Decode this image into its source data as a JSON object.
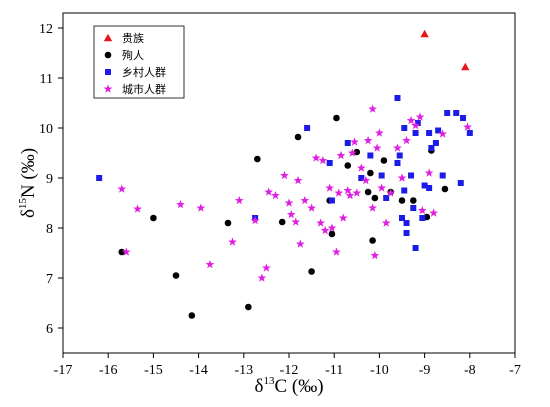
{
  "chart_data": {
    "type": "scatter",
    "xlabel": "δ13C (‰)",
    "ylabel": "δ15N (‰)",
    "xlabel_parts": {
      "delta": "δ",
      "sup": "13",
      "main": "C (‰)"
    },
    "ylabel_parts": {
      "delta": "δ",
      "sup": "15",
      "main": "N (‰)"
    },
    "xlim": [
      -17,
      -7
    ],
    "ylim": [
      5.5,
      12.3
    ],
    "xticks": [
      "-17",
      "-16",
      "-15",
      "-14",
      "-13",
      "-12",
      "-11",
      "-10",
      "-9",
      "-8",
      "-7"
    ],
    "yticks": [
      "6",
      "7",
      "8",
      "9",
      "10",
      "11",
      "12"
    ],
    "grid": false,
    "legend_position": "top-left",
    "series": [
      {
        "name": "贵族",
        "marker": "triangle",
        "color": "#e8141c",
        "points": [
          [
            -9.0,
            11.88
          ],
          [
            -8.1,
            11.22
          ]
        ]
      },
      {
        "name": "殉人",
        "marker": "circle",
        "color": "#000000",
        "points": [
          [
            -15.7,
            7.52
          ],
          [
            -15.0,
            8.2
          ],
          [
            -14.5,
            7.05
          ],
          [
            -14.15,
            6.25
          ],
          [
            -13.35,
            8.1
          ],
          [
            -12.9,
            6.42
          ],
          [
            -12.7,
            9.38
          ],
          [
            -12.15,
            8.12
          ],
          [
            -11.8,
            9.82
          ],
          [
            -11.5,
            7.13
          ],
          [
            -11.05,
            7.88
          ],
          [
            -11.1,
            8.55
          ],
          [
            -10.95,
            10.2
          ],
          [
            -10.7,
            9.25
          ],
          [
            -10.5,
            9.52
          ],
          [
            -10.25,
            8.72
          ],
          [
            -10.15,
            7.75
          ],
          [
            -10.1,
            8.6
          ],
          [
            -9.9,
            9.35
          ],
          [
            -9.75,
            8.72
          ],
          [
            -9.5,
            8.55
          ],
          [
            -9.25,
            8.55
          ],
          [
            -8.95,
            8.22
          ],
          [
            -8.85,
            9.55
          ],
          [
            -8.55,
            8.78
          ],
          [
            -10.2,
            9.1
          ]
        ]
      },
      {
        "name": "乡村人群",
        "marker": "square",
        "color": "#1c1ce8",
        "points": [
          [
            -16.2,
            9.0
          ],
          [
            -12.75,
            8.2
          ],
          [
            -11.1,
            9.3
          ],
          [
            -11.6,
            10.0
          ],
          [
            -11.05,
            8.55
          ],
          [
            -10.7,
            9.7
          ],
          [
            -10.4,
            9.0
          ],
          [
            -10.2,
            9.45
          ],
          [
            -9.95,
            9.05
          ],
          [
            -9.85,
            8.6
          ],
          [
            -9.6,
            9.3
          ],
          [
            -9.55,
            9.45
          ],
          [
            -9.45,
            10.0
          ],
          [
            -9.45,
            8.75
          ],
          [
            -9.4,
            8.1
          ],
          [
            -9.4,
            7.9
          ],
          [
            -9.3,
            9.05
          ],
          [
            -9.25,
            8.4
          ],
          [
            -9.2,
            7.6
          ],
          [
            -9.2,
            9.9
          ],
          [
            -9.05,
            8.2
          ],
          [
            -9.0,
            8.85
          ],
          [
            -8.9,
            8.8
          ],
          [
            -8.85,
            9.6
          ],
          [
            -8.75,
            9.7
          ],
          [
            -8.7,
            9.95
          ],
          [
            -8.6,
            9.05
          ],
          [
            -8.5,
            10.3
          ],
          [
            -8.3,
            10.3
          ],
          [
            -8.2,
            8.9
          ],
          [
            -8.15,
            10.2
          ],
          [
            -8.0,
            9.9
          ],
          [
            -8.9,
            9.9
          ],
          [
            -9.6,
            10.6
          ],
          [
            -9.5,
            8.2
          ],
          [
            -9.15,
            10.1
          ]
        ]
      },
      {
        "name": "城市人群",
        "marker": "star",
        "color": "#e020e0",
        "points": [
          [
            -15.7,
            8.78
          ],
          [
            -15.6,
            7.52
          ],
          [
            -15.35,
            8.38
          ],
          [
            -14.4,
            8.47
          ],
          [
            -13.95,
            8.4
          ],
          [
            -13.75,
            7.27
          ],
          [
            -13.25,
            7.72
          ],
          [
            -13.1,
            8.55
          ],
          [
            -12.6,
            7.0
          ],
          [
            -12.5,
            7.2
          ],
          [
            -12.45,
            8.72
          ],
          [
            -12.3,
            8.65
          ],
          [
            -12.1,
            9.05
          ],
          [
            -11.95,
            8.27
          ],
          [
            -11.85,
            8.12
          ],
          [
            -11.75,
            7.68
          ],
          [
            -11.8,
            8.95
          ],
          [
            -11.65,
            8.55
          ],
          [
            -11.5,
            8.4
          ],
          [
            -11.4,
            9.4
          ],
          [
            -11.25,
            9.35
          ],
          [
            -11.3,
            8.1
          ],
          [
            -11.2,
            7.95
          ],
          [
            -11.1,
            8.8
          ],
          [
            -11.05,
            8.0
          ],
          [
            -10.9,
            8.7
          ],
          [
            -10.85,
            9.45
          ],
          [
            -10.8,
            8.2
          ],
          [
            -10.65,
            8.65
          ],
          [
            -10.6,
            9.5
          ],
          [
            -10.55,
            9.72
          ],
          [
            -10.5,
            8.7
          ],
          [
            -10.4,
            9.2
          ],
          [
            -10.3,
            8.95
          ],
          [
            -10.25,
            9.75
          ],
          [
            -10.15,
            10.38
          ],
          [
            -10.05,
            9.6
          ],
          [
            -10.0,
            9.9
          ],
          [
            -9.95,
            8.8
          ],
          [
            -9.85,
            8.1
          ],
          [
            -9.75,
            8.7
          ],
          [
            -9.6,
            9.6
          ],
          [
            -9.5,
            9.0
          ],
          [
            -9.4,
            9.75
          ],
          [
            -9.3,
            10.15
          ],
          [
            -9.2,
            10.05
          ],
          [
            -9.1,
            10.22
          ],
          [
            -9.05,
            8.35
          ],
          [
            -8.9,
            9.1
          ],
          [
            -8.8,
            8.3
          ],
          [
            -8.6,
            9.88
          ],
          [
            -8.05,
            10.02
          ],
          [
            -10.95,
            7.52
          ],
          [
            -10.15,
            8.4
          ],
          [
            -12.75,
            8.15
          ],
          [
            -10.1,
            7.45
          ],
          [
            -10.7,
            8.75
          ],
          [
            -12.0,
            8.5
          ]
        ]
      }
    ]
  }
}
